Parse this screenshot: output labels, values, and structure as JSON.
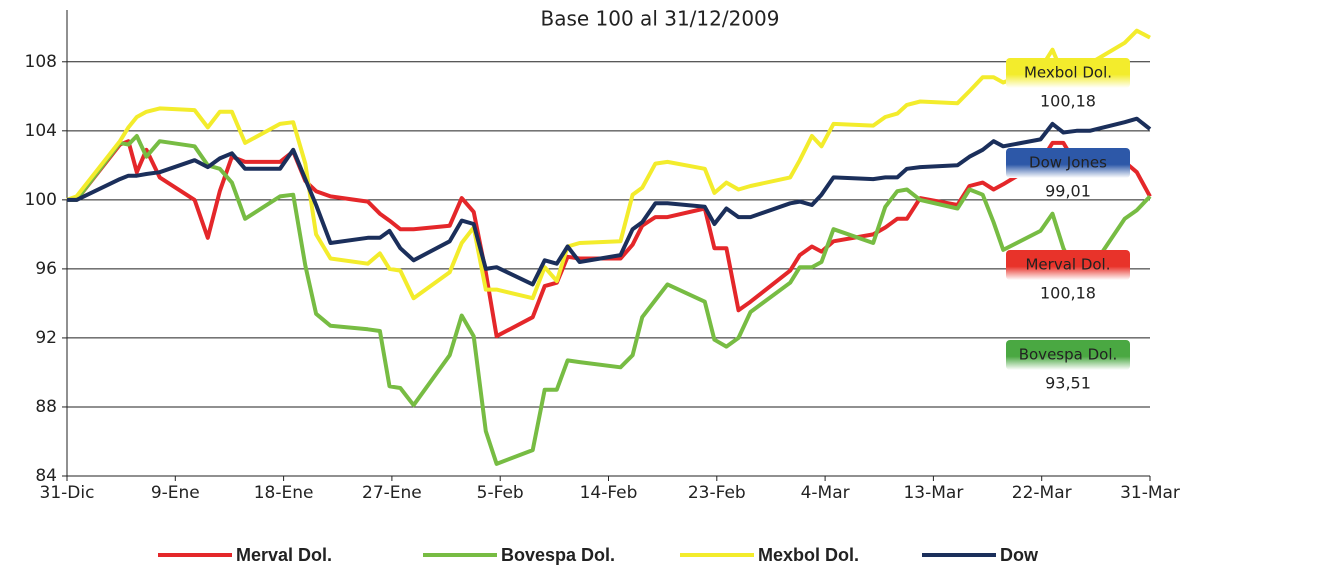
{
  "chart_data": {
    "type": "line",
    "title": "Base 100 al 31/12/2009",
    "x": [
      0,
      0.8,
      4.4,
      5.1,
      5.8,
      6.6,
      7.7,
      10.6,
      11.7,
      12.7,
      13.7,
      14.8,
      17.7,
      18.8,
      19.8,
      20.7,
      21.9,
      25.0,
      26.0,
      26.8,
      27.7,
      28.8,
      31.8,
      32.8,
      33.8,
      34.8,
      35.7,
      38.7,
      39.7,
      40.7,
      41.6,
      42.6,
      46.0,
      47.0,
      47.8,
      48.9,
      49.9,
      53.0,
      53.8,
      54.8,
      55.8,
      56.8,
      60.1,
      60.9,
      61.9,
      62.7,
      63.7,
      67.0,
      68.0,
      69.0,
      69.8,
      70.9,
      74.0,
      75.0,
      76.1,
      77.0,
      77.8,
      80.9,
      81.9,
      82.8,
      83.9,
      85.0,
      87.9,
      88.9,
      90
    ],
    "xlim": [
      0,
      90
    ],
    "xticks": [
      {
        "value": 0,
        "label": "31-Dic"
      },
      {
        "value": 9,
        "label": "9-Ene"
      },
      {
        "value": 18,
        "label": "18-Ene"
      },
      {
        "value": 27,
        "label": "27-Ene"
      },
      {
        "value": 36,
        "label": "5-Feb"
      },
      {
        "value": 45,
        "label": "14-Feb"
      },
      {
        "value": 54,
        "label": "23-Feb"
      },
      {
        "value": 63,
        "label": "4-Mar"
      },
      {
        "value": 72,
        "label": "13-Mar"
      },
      {
        "value": 81,
        "label": "22-Mar"
      },
      {
        "value": 90,
        "label": "31-Mar"
      }
    ],
    "ylim": [
      84,
      111
    ],
    "yticks": [
      84,
      88,
      92,
      96,
      100,
      104,
      108
    ],
    "grid": true,
    "series": [
      {
        "name": "Merval Dol.",
        "color": "#e4272a",
        "values": [
          100,
          100,
          103.2,
          103.4,
          101.6,
          102.9,
          101.3,
          100,
          97.8,
          100.5,
          102.5,
          102.2,
          102.2,
          102.8,
          101.1,
          100.5,
          100.2,
          99.9,
          99.2,
          98.8,
          98.3,
          98.3,
          98.5,
          100.1,
          99.3,
          95.8,
          92.1,
          93.2,
          95,
          95.2,
          96.7,
          96.6,
          96.6,
          97.4,
          98.5,
          99,
          99,
          99.5,
          97.2,
          97.2,
          93.6,
          94.1,
          95.9,
          96.8,
          97.3,
          97,
          97.6,
          98,
          98.4,
          98.9,
          98.9,
          100.1,
          99.7,
          100.8,
          101,
          100.6,
          100.9,
          102.2,
          103.3,
          103.3,
          102,
          101.7,
          102.2,
          101.6,
          100.2
        ]
      },
      {
        "name": "Bovespa Dol.",
        "color": "#77bc43",
        "values": [
          100,
          100,
          103.3,
          103.2,
          103.7,
          102.5,
          103.4,
          103.1,
          102,
          101.8,
          101,
          98.9,
          100.2,
          100.3,
          96.2,
          93.4,
          92.7,
          92.5,
          92.4,
          89.2,
          89.1,
          88.1,
          91,
          93.3,
          92.1,
          86.6,
          84.7,
          85.5,
          89,
          89,
          90.7,
          90.6,
          90.3,
          91,
          93.2,
          94.2,
          95.1,
          94.1,
          91.9,
          91.5,
          92,
          93.5,
          95.2,
          96.1,
          96.1,
          96.4,
          98.3,
          97.5,
          99.6,
          100.5,
          100.6,
          100,
          99.5,
          100.6,
          100.3,
          98.7,
          97.1,
          98.2,
          99.2,
          97.2,
          95.6,
          95.9,
          98.9,
          99.4,
          100.2
        ]
      },
      {
        "name": "Mexbol Dol.",
        "color": "#f3ec2c",
        "values": [
          100,
          100.2,
          103.4,
          104.2,
          104.8,
          105.1,
          105.3,
          105.2,
          104.2,
          105.1,
          105.1,
          103.3,
          104.4,
          104.5,
          102.1,
          98,
          96.6,
          96.3,
          96.9,
          96,
          95.9,
          94.3,
          95.8,
          97.5,
          98.4,
          94.8,
          94.8,
          94.3,
          96.1,
          95.3,
          97.3,
          97.5,
          97.6,
          100.3,
          100.7,
          102.1,
          102.2,
          101.8,
          100.4,
          101,
          100.6,
          100.8,
          101.3,
          102.3,
          103.7,
          103.1,
          104.4,
          104.3,
          104.8,
          105,
          105.5,
          105.7,
          105.6,
          106.3,
          107.1,
          107.1,
          106.8,
          107.6,
          108.7,
          107.2,
          107.4,
          107.9,
          109.1,
          109.8,
          109.4
        ]
      },
      {
        "name": "Dow",
        "color": "#1b2f5b",
        "values": [
          100,
          100,
          101.2,
          101.4,
          101.4,
          101.5,
          101.6,
          102.3,
          101.9,
          102.4,
          102.7,
          101.8,
          101.8,
          102.9,
          101.2,
          99.7,
          97.5,
          97.8,
          97.8,
          98.2,
          97.2,
          96.5,
          97.6,
          98.8,
          98.6,
          96,
          96.1,
          95.1,
          96.5,
          96.3,
          97.3,
          96.4,
          96.8,
          98.3,
          98.7,
          99.8,
          99.8,
          99.6,
          98.6,
          99.5,
          99,
          99,
          99.8,
          99.9,
          99.7,
          100.3,
          101.3,
          101.2,
          101.3,
          101.3,
          101.8,
          101.9,
          102,
          102.5,
          102.9,
          103.4,
          103.1,
          103.5,
          104.4,
          103.9,
          104,
          104,
          104.5,
          104.7,
          104.1
        ]
      }
    ],
    "annotations": [
      {
        "label": "Mexbol Dol.",
        "value": "100,18",
        "color": "#f3ec2c"
      },
      {
        "label": "Dow Jones",
        "value": "99,01",
        "color": "#2d58a8"
      },
      {
        "label": "Merval Dol.",
        "value": "100,18",
        "color": "#e8332a"
      },
      {
        "label": "Bovespa Dol.",
        "value": "93,51",
        "color": "#4aa842"
      }
    ]
  }
}
